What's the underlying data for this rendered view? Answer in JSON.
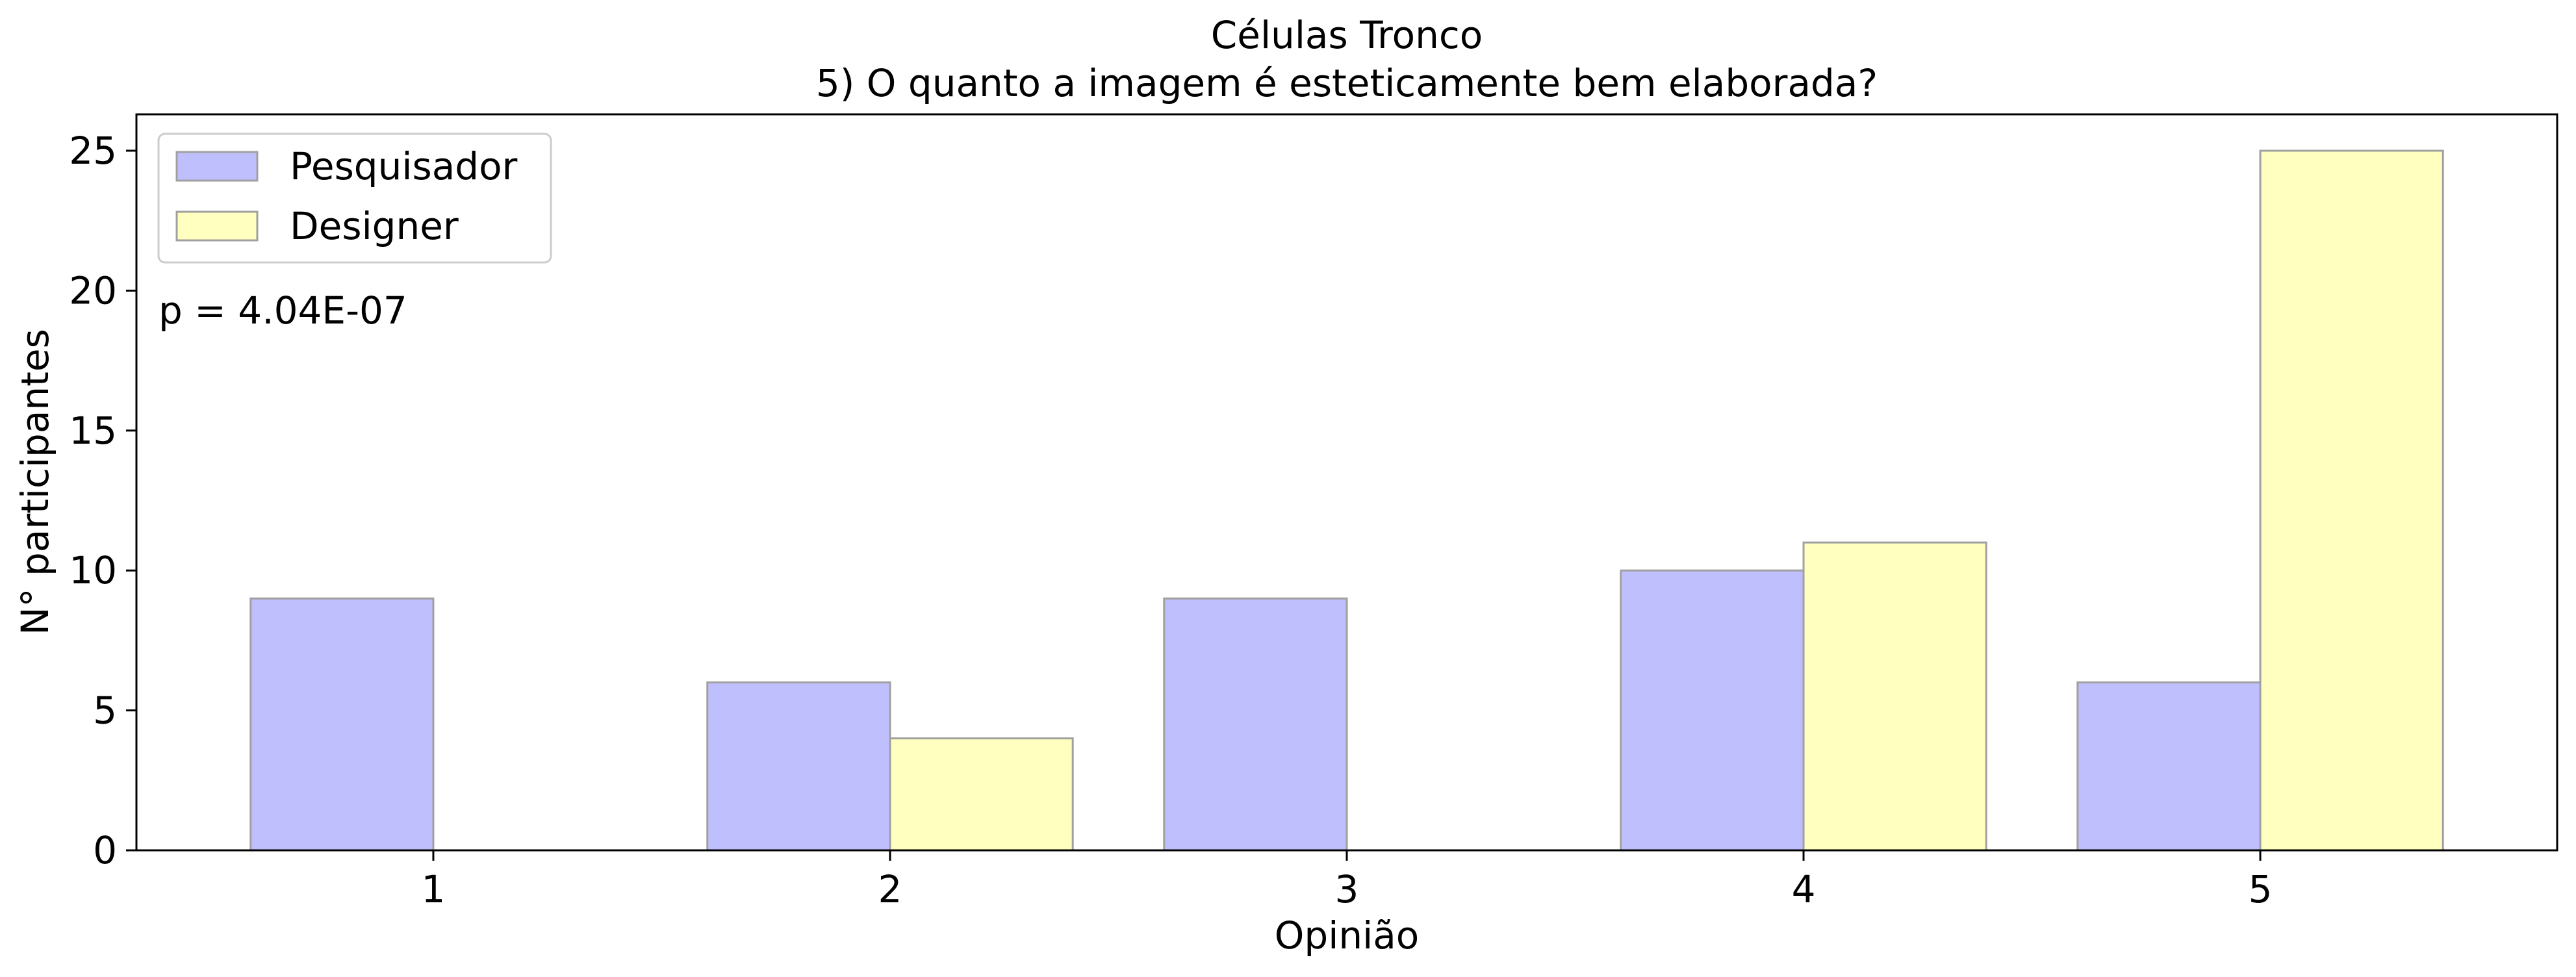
{
  "chart_data": {
    "type": "bar",
    "title": "Células Tronco",
    "subtitle": "5) O quanto a imagem é esteticamente bem elaborada?",
    "xlabel": "Opinião",
    "ylabel": "N° participantes",
    "categories": [
      "1",
      "2",
      "3",
      "4",
      "5"
    ],
    "series": [
      {
        "name": "Pesquisador",
        "values": [
          9,
          6,
          9,
          10,
          6
        ],
        "color": "#bfbffe"
      },
      {
        "name": "Designer",
        "values": [
          0,
          4,
          0,
          11,
          25
        ],
        "color": "#ffffbf"
      }
    ],
    "ylim": [
      0,
      26.3
    ],
    "yticks": [
      0,
      5,
      10,
      15,
      20,
      25
    ],
    "grid": false,
    "legend_position": "top-left",
    "annotation": "p = 4.04E-07"
  }
}
